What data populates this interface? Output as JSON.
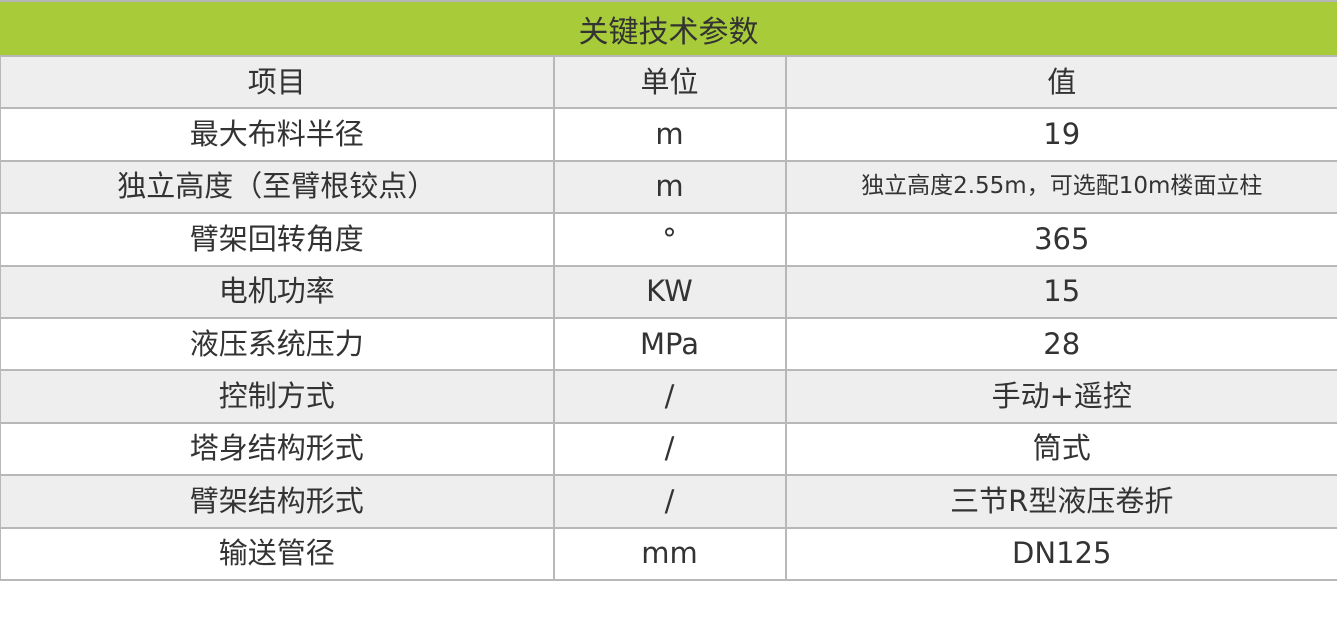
{
  "title": "关键技术参数",
  "colors": {
    "title_bg": "#a8cb3a",
    "alt_row_bg": "#eeeeee",
    "border": "#b8b8b8"
  },
  "header": [
    "项目",
    "单位",
    "值"
  ],
  "rows": [
    [
      "最大布料半径",
      "m",
      "19"
    ],
    [
      "独立高度（至臂根铰点）",
      "m",
      "独立高度2.55m，可选配10m楼面立柱"
    ],
    [
      "臂架回转角度",
      "°",
      "365"
    ],
    [
      "电机功率",
      "KW",
      "15"
    ],
    [
      "液压系统压力",
      "MPa",
      "28"
    ],
    [
      "控制方式",
      "/",
      "手动+遥控"
    ],
    [
      "塔身结构形式",
      "/",
      "筒式"
    ],
    [
      "臂架结构形式",
      "/",
      "三节R型液压卷折"
    ],
    [
      "输送管径",
      "mm",
      "DN125"
    ]
  ]
}
